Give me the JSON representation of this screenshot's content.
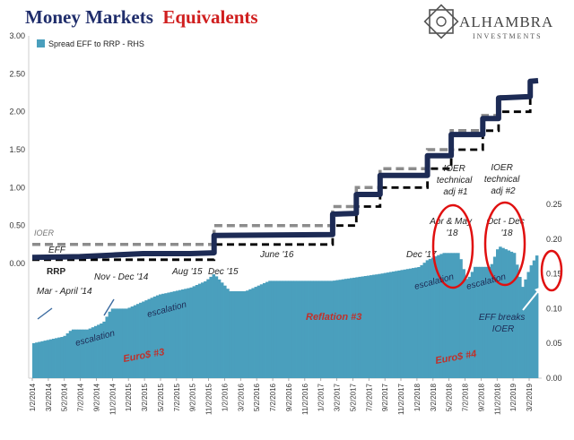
{
  "title": {
    "part1": "Money Markets",
    "part2": "Equivalents"
  },
  "logo": {
    "name": "ALHAMBRA",
    "sub": "INVESTMENTS"
  },
  "colors": {
    "spread": "#4a9fbd",
    "eff": "#1d2b55",
    "ioer": "#8c8c8c",
    "rrp": "#000000",
    "red": "#d01f1f",
    "title": "#1f2d6b"
  },
  "chart_data": {
    "type": "area",
    "legend": "Spread EFF to RRP - RHS",
    "legend_position": "top-left",
    "left_axis": {
      "ticks": [
        "3.00",
        "2.50",
        "2.00",
        "1.50",
        "1.00",
        "0.50",
        "0.00"
      ],
      "min": 0,
      "max": 3
    },
    "right_axis": {
      "ticks": [
        "0.25",
        "0.20",
        "0.15",
        "0.10",
        "0.05",
        "0.00"
      ],
      "min": 0,
      "max": 0.25
    },
    "x_tick_labels": [
      "1/2/2014",
      "3/2/2014",
      "5/2/2014",
      "7/2/2014",
      "9/2/2014",
      "11/2/2014",
      "1/2/2015",
      "3/2/2015",
      "5/2/2015",
      "7/2/2015",
      "9/2/2015",
      "11/2/2015",
      "1/2/2016",
      "3/2/2016",
      "5/2/2016",
      "7/2/2016",
      "9/2/2016",
      "11/2/2016",
      "1/2/2017",
      "3/2/2017",
      "5/2/2017",
      "7/2/2017",
      "9/2/2017",
      "11/2/2017",
      "1/2/2018",
      "3/2/2018",
      "5/2/2018",
      "7/2/2018",
      "9/2/2018",
      "11/2/2018",
      "1/2/2019",
      "3/2/2019"
    ],
    "series": [
      {
        "name": "IOER",
        "points": [
          [
            0,
            0.25
          ],
          [
            23,
            0.25
          ],
          [
            23,
            0.5
          ],
          [
            38,
            0.5
          ],
          [
            38,
            0.75
          ],
          [
            41,
            0.75
          ],
          [
            41,
            1.0
          ],
          [
            44,
            1.0
          ],
          [
            44,
            1.25
          ],
          [
            50,
            1.25
          ],
          [
            50,
            1.5
          ],
          [
            53,
            1.5
          ],
          [
            53,
            1.75
          ],
          [
            57,
            1.75
          ],
          [
            57,
            1.95
          ],
          [
            59,
            1.95
          ],
          [
            59,
            2.2
          ],
          [
            63,
            2.2
          ],
          [
            63,
            2.35
          ]
        ]
      },
      {
        "name": "EFF",
        "points": [
          [
            0,
            0.08
          ],
          [
            6,
            0.09
          ],
          [
            10,
            0.11
          ],
          [
            14,
            0.13
          ],
          [
            20,
            0.13
          ],
          [
            23,
            0.14
          ],
          [
            23,
            0.37
          ],
          [
            38,
            0.38
          ],
          [
            38,
            0.65
          ],
          [
            41,
            0.66
          ],
          [
            41,
            0.91
          ],
          [
            44,
            0.91
          ],
          [
            44,
            1.16
          ],
          [
            50,
            1.16
          ],
          [
            50,
            1.42
          ],
          [
            53,
            1.42
          ],
          [
            53,
            1.7
          ],
          [
            57,
            1.7
          ],
          [
            57,
            1.91
          ],
          [
            59,
            1.91
          ],
          [
            59,
            2.18
          ],
          [
            63,
            2.2
          ],
          [
            63,
            2.4
          ],
          [
            64,
            2.41
          ]
        ]
      },
      {
        "name": "RRP",
        "points": [
          [
            0,
            0.05
          ],
          [
            23,
            0.05
          ],
          [
            23,
            0.25
          ],
          [
            38,
            0.25
          ],
          [
            38,
            0.5
          ],
          [
            41,
            0.5
          ],
          [
            41,
            0.75
          ],
          [
            44,
            0.75
          ],
          [
            44,
            1.0
          ],
          [
            50,
            1.0
          ],
          [
            50,
            1.25
          ],
          [
            53,
            1.25
          ],
          [
            53,
            1.5
          ],
          [
            57,
            1.5
          ],
          [
            57,
            1.75
          ],
          [
            59,
            1.75
          ],
          [
            59,
            2.0
          ],
          [
            63,
            2.0
          ],
          [
            63,
            2.25
          ]
        ]
      },
      {
        "name": "Spread EFF to RRP - RHS",
        "points": [
          [
            0,
            0.05
          ],
          [
            2,
            0.055
          ],
          [
            4,
            0.06
          ],
          [
            5,
            0.07
          ],
          [
            7,
            0.07
          ],
          [
            9,
            0.08
          ],
          [
            10,
            0.1
          ],
          [
            12,
            0.1
          ],
          [
            14,
            0.11
          ],
          [
            16,
            0.12
          ],
          [
            18,
            0.125
          ],
          [
            20,
            0.13
          ],
          [
            22,
            0.14
          ],
          [
            23,
            0.15
          ],
          [
            25,
            0.125
          ],
          [
            27,
            0.125
          ],
          [
            28,
            0.13
          ],
          [
            30,
            0.14
          ],
          [
            38,
            0.14
          ],
          [
            44,
            0.15
          ],
          [
            49,
            0.16
          ],
          [
            50,
            0.17
          ],
          [
            52,
            0.18
          ],
          [
            54,
            0.18
          ],
          [
            55,
            0.14
          ],
          [
            56,
            0.16
          ],
          [
            58,
            0.16
          ],
          [
            59,
            0.19
          ],
          [
            61,
            0.18
          ],
          [
            62,
            0.13
          ],
          [
            63,
            0.16
          ],
          [
            64,
            0.18
          ]
        ]
      }
    ],
    "x_range": [
      0,
      64
    ],
    "annotations": {
      "ioer": "IOER",
      "eff": "EFF",
      "rrp": "RRP",
      "mar_apr_14": "Mar - April '14",
      "nov_dec_14": "Nov - Dec '14",
      "aug_15": "Aug '15",
      "dec_15": "Dec '15",
      "june_16": "June '16",
      "dec_17": "Dec '17",
      "ioer_adj1": [
        "IOER",
        "technical",
        "adj #1"
      ],
      "ioer_adj2": [
        "IOER",
        "technical",
        "adj #2"
      ],
      "apr_may_18": [
        "Apr & May",
        "'18"
      ],
      "oct_dec_18": [
        "Oct - Dec",
        "'18"
      ],
      "escalation": "escalation",
      "reflation3": "Reflation #3",
      "euro3": "Euro$ #3",
      "euro4": "Euro$ #4",
      "eff_breaks": [
        "EFF breaks",
        "IOER"
      ]
    }
  }
}
